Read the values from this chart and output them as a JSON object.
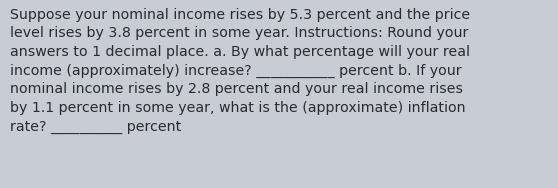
{
  "text": "Suppose your nominal income rises by 5.3 percent and the price\nlevel rises by 3.8 percent in some year. Instructions: Round your\nanswers to 1 decimal place. a. By what percentage will your real\nincome (approximately) increase? ___________ percent b. If your\nnominal income rises by 2.8 percent and your real income rises\nby 1.1 percent in some year, what is the (approximate) inflation\nrate? __________ percent",
  "background_color": "#c8ccd4",
  "text_color": "#2b2b2b",
  "font_size": 10.2,
  "fig_width": 5.58,
  "fig_height": 1.88
}
